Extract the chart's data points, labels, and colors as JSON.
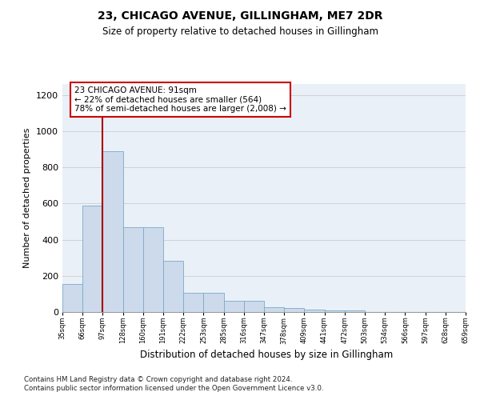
{
  "title1": "23, CHICAGO AVENUE, GILLINGHAM, ME7 2DR",
  "title2": "Size of property relative to detached houses in Gillingham",
  "xlabel": "Distribution of detached houses by size in Gillingham",
  "ylabel": "Number of detached properties",
  "bar_values": [
    155,
    590,
    890,
    470,
    470,
    285,
    105,
    105,
    60,
    60,
    28,
    20,
    15,
    10,
    10,
    0,
    0,
    0,
    0,
    0
  ],
  "categories": [
    "35sqm",
    "66sqm",
    "97sqm",
    "128sqm",
    "160sqm",
    "191sqm",
    "222sqm",
    "253sqm",
    "285sqm",
    "316sqm",
    "347sqm",
    "378sqm",
    "409sqm",
    "441sqm",
    "472sqm",
    "503sqm",
    "534sqm",
    "566sqm",
    "597sqm",
    "628sqm",
    "659sqm"
  ],
  "bar_color": "#ccdaeb",
  "bar_edge_color": "#7aaac8",
  "grid_color": "#cccccc",
  "vline_color": "#aa0000",
  "annotation_text": "23 CHICAGO AVENUE: 91sqm\n← 22% of detached houses are smaller (564)\n78% of semi-detached houses are larger (2,008) →",
  "annotation_facecolor": "white",
  "annotation_edgecolor": "#cc0000",
  "ylim_max": 1260,
  "yticks": [
    0,
    200,
    400,
    600,
    800,
    1000,
    1200
  ],
  "footnote1": "Contains HM Land Registry data © Crown copyright and database right 2024.",
  "footnote2": "Contains public sector information licensed under the Open Government Licence v3.0.",
  "plot_bg": "#eaf0f8"
}
